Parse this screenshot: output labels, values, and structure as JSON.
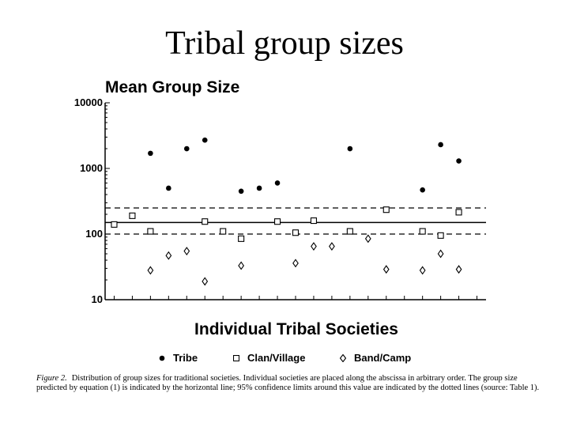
{
  "slide": {
    "title": "Tribal group sizes"
  },
  "chart_data": {
    "type": "scatter",
    "title": "",
    "ylabel": "Mean Group Size",
    "xlabel": "Individual Tribal Societies",
    "y_scale": "log",
    "ylim": [
      10,
      10000
    ],
    "y_ticks": [
      "10000",
      "1000",
      "100",
      "10"
    ],
    "x": [
      1,
      2,
      3,
      4,
      5,
      6,
      7,
      8,
      9,
      10,
      11,
      12,
      13,
      14,
      15,
      16,
      17,
      18,
      19,
      20,
      21
    ],
    "series": [
      {
        "name": "Tribe",
        "marker": "filled-circle",
        "values": [
          null,
          null,
          1700,
          500,
          2000,
          2700,
          null,
          450,
          500,
          600,
          null,
          null,
          null,
          2000,
          null,
          null,
          null,
          470,
          2300,
          1300,
          null
        ]
      },
      {
        "name": "Clan/Village",
        "marker": "open-square",
        "values": [
          140,
          190,
          110,
          null,
          null,
          155,
          110,
          85,
          null,
          155,
          105,
          160,
          null,
          110,
          null,
          235,
          null,
          110,
          95,
          215,
          null
        ]
      },
      {
        "name": "Band/Camp",
        "marker": "open-diamond",
        "values": [
          null,
          null,
          28,
          47,
          55,
          19,
          null,
          33,
          null,
          null,
          36,
          65,
          65,
          null,
          85,
          29,
          null,
          28,
          50,
          29,
          null
        ]
      }
    ],
    "reference_lines": [
      {
        "label": "predicted group size",
        "y": 150,
        "style": "solid"
      },
      {
        "label": "95% confidence upper",
        "y": 250,
        "style": "dashed"
      },
      {
        "label": "95% confidence lower",
        "y": 100,
        "style": "dashed"
      }
    ],
    "legend": [
      "Tribe",
      "Clan/Village",
      "Band/Camp"
    ],
    "legend_placement": "bottom",
    "grid": false
  },
  "caption": {
    "lead": "Figure 2.",
    "text": "Distribution of group sizes for traditional societies. Individual societies are placed along the abscissa in arbitrary order. The group size predicted by equation (1) is indicated by the horizontal line; 95% confidence limits around this value are indicated by the dotted lines (source: Table 1)."
  }
}
